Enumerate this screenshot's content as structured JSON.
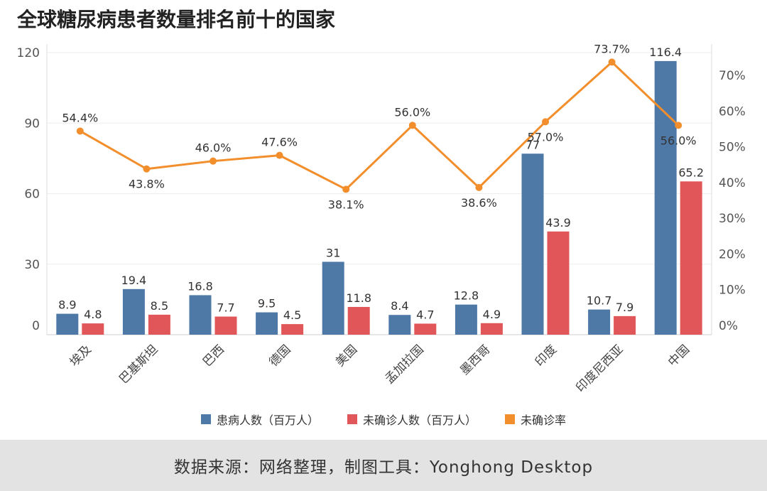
{
  "chart_data": {
    "type": "bar",
    "title": "全球糖尿病患者数量排名前十的国家",
    "categories": [
      "埃及",
      "巴基斯坦",
      "巴西",
      "德国",
      "美国",
      "孟加拉国",
      "墨西哥",
      "印度",
      "印度尼西亚",
      "中国"
    ],
    "series": [
      {
        "name": "患病人数（百万人）",
        "type": "bar",
        "axis": "left",
        "color": "#4e79a7",
        "values": [
          8.9,
          19.4,
          16.8,
          9.5,
          31,
          8.4,
          12.8,
          77,
          10.7,
          116.4
        ],
        "labels": [
          "8.9",
          "19.4",
          "16.8",
          "9.5",
          "31",
          "8.4",
          "12.8",
          "77",
          "10.7",
          "116.4"
        ]
      },
      {
        "name": "未确诊人数（百万人）",
        "type": "bar",
        "axis": "left",
        "color": "#e15759",
        "values": [
          4.8,
          8.5,
          7.7,
          4.5,
          11.8,
          4.7,
          4.9,
          43.9,
          7.9,
          65.2
        ],
        "labels": [
          "4.8",
          "8.5",
          "7.7",
          "4.5",
          "11.8",
          "4.7",
          "4.9",
          "43.9",
          "7.9",
          "65.2"
        ]
      },
      {
        "name": "未确诊率",
        "type": "line",
        "axis": "right",
        "color": "#f28e2b",
        "values": [
          54.4,
          43.8,
          46.0,
          47.6,
          38.1,
          56.0,
          38.6,
          57.0,
          73.7,
          56.0
        ],
        "labels": [
          "54.4%",
          "43.8%",
          "46.0%",
          "47.6%",
          "38.1%",
          "56.0%",
          "38.6%",
          "57.0%",
          "73.7%",
          "56.0%"
        ]
      }
    ],
    "y_left": {
      "ticks": [
        "0",
        "30",
        "60",
        "90",
        "120"
      ]
    },
    "y_right": {
      "ticks": [
        "0%",
        "10%",
        "20%",
        "30%",
        "40%",
        "50%",
        "60%",
        "70%"
      ]
    },
    "legend_position": "bottom"
  },
  "footer": {
    "text": "数据来源：网络整理，制图工具：Yonghong Desktop"
  }
}
